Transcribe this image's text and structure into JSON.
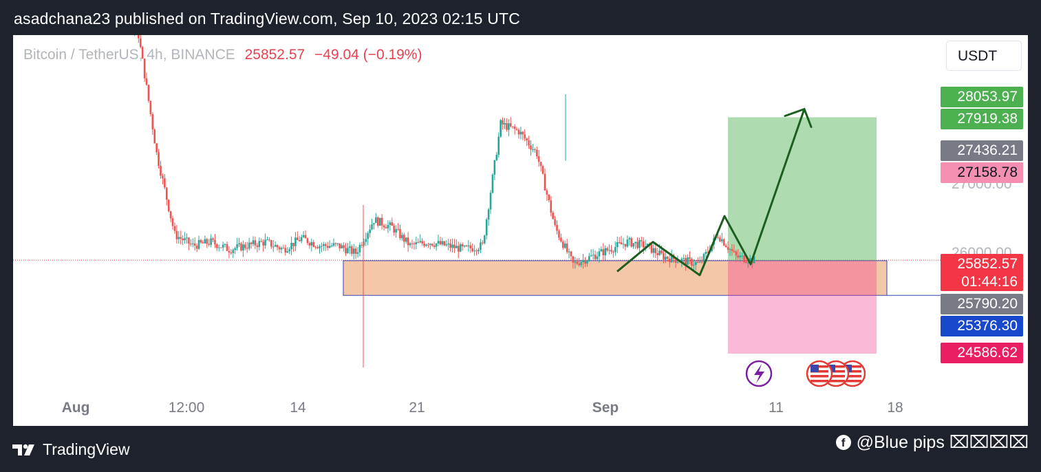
{
  "header": {
    "published": "asadchana23 published on TradingView.com, Sep 10, 2023 02:15 UTC"
  },
  "symbol": {
    "name": "Bitcoin / TetherUS, 4h, BINANCE",
    "price": "25852.57",
    "change": "−49.04 (−0.19%)"
  },
  "currency": "USDT",
  "price_labels": [
    {
      "text": "28053.97",
      "color": "#4caf50"
    },
    {
      "text": "27919.38",
      "color": "#4caf50"
    },
    {
      "text": "27436.21",
      "color": "#787b86"
    },
    {
      "text": "27158.78",
      "color": "#f48fb1",
      "text_color": "#131722"
    },
    {
      "text": "25852.57",
      "sub": "01:44:16",
      "color": "#f23645"
    },
    {
      "text": "25790.20",
      "color": "#787b86"
    },
    {
      "text": "25376.30",
      "color": "#1848cc"
    },
    {
      "text": "24586.62",
      "color": "#e91e63"
    }
  ],
  "axis_ghost_ticks": [
    "27000.00",
    "26000.00"
  ],
  "x_ticks": [
    {
      "label": "Aug",
      "bold": true
    },
    {
      "label": "12:00",
      "bold": false
    },
    {
      "label": "14",
      "bold": false
    },
    {
      "label": "21",
      "bold": false
    },
    {
      "label": "Sep",
      "bold": true
    },
    {
      "label": "11",
      "bold": false
    },
    {
      "label": "18",
      "bold": false
    }
  ],
  "chart_data": {
    "type": "candlestick",
    "symbol": "Bitcoin / TetherUS, 4h, BINANCE",
    "currency": "USDT",
    "last_price": 25852.57,
    "y_range": [
      24300,
      29600
    ],
    "colors": {
      "up": "#26a69a",
      "down": "#ef5350"
    },
    "close_path": [
      29400,
      29300,
      29500,
      29200,
      28900,
      27300,
      26200,
      26050,
      26100,
      26000,
      26050,
      26100,
      26000,
      26150,
      26050,
      26050,
      25950,
      26400,
      26300,
      26050,
      26100,
      26050,
      26000,
      26050,
      27700,
      27600,
      27300,
      26300,
      25800,
      25900,
      26000,
      26100,
      26050,
      25900,
      25850,
      25800,
      26200,
      25900,
      25850
    ],
    "support_zone": {
      "top": 25790.2,
      "bottom": 25376.3
    },
    "long_position": {
      "entry": 25790.2,
      "target": 27919.38,
      "stop": 24586.62
    },
    "levels": [
      28053.97,
      27919.38,
      27436.21,
      27158.78,
      25852.57,
      25790.2,
      25376.3,
      24586.62
    ],
    "projection_path": [
      25700,
      26100,
      25650,
      26450,
      25800,
      27900
    ]
  },
  "footer": {
    "brand": "TradingView",
    "credit": "@Blue pips ⌧⌧⌧⌧"
  }
}
